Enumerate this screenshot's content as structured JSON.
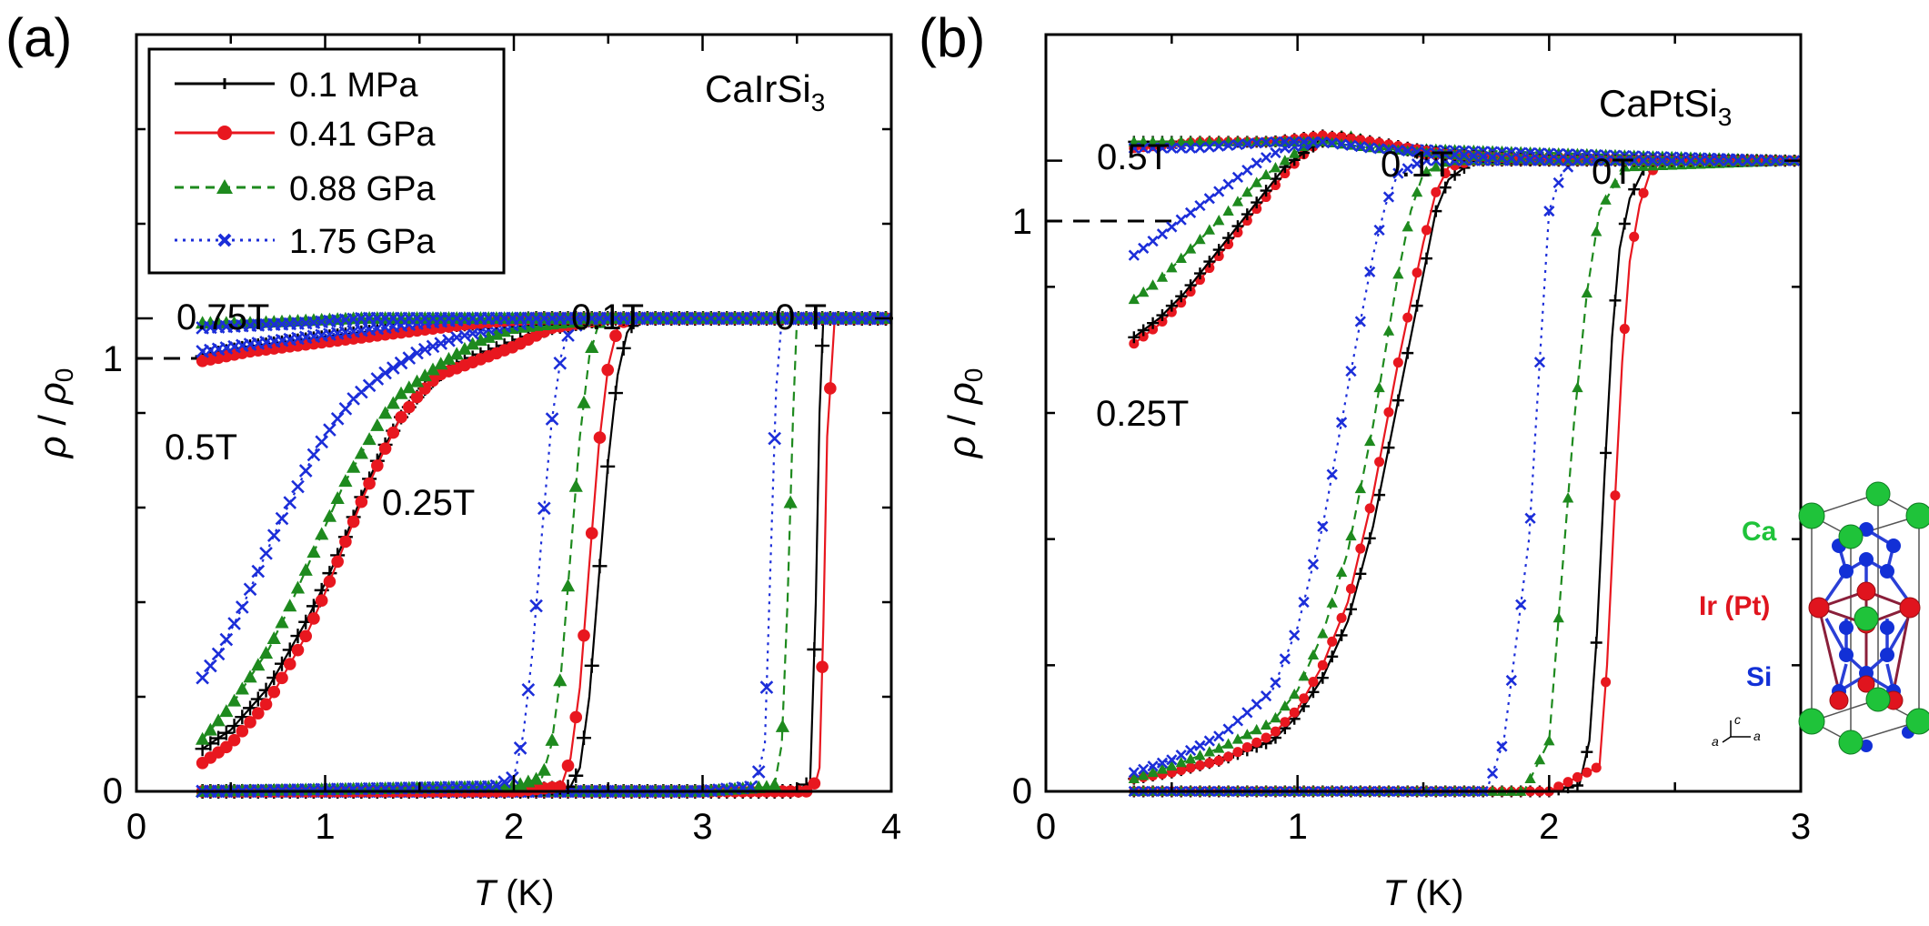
{
  "colors": {
    "black": "#000000",
    "red": "#e8171f",
    "green": "#1e8a1e",
    "blue": "#1c2ed9",
    "ca_atom": "#1fc33a",
    "ir_atom": "#e0141e",
    "si_atom": "#1230d6"
  },
  "panel_a": {
    "label": "(a)",
    "compound_prefix": "CaIrSi",
    "compound_sub": "3",
    "ylabel_rho": "ρ",
    "ylabel_slash": " / ",
    "ylabel_rho0": "ρ",
    "ylabel_sub": "0",
    "xlabel_var": "T",
    "xlabel_unit": " (K)",
    "x_ticks": [
      "0",
      "1",
      "2",
      "3",
      "4"
    ],
    "y_ticks": [
      "0",
      "1"
    ],
    "field_labels": [
      "0.75T",
      "0.1T",
      "0 T",
      "0.5T",
      "0.25T"
    ],
    "legend": [
      {
        "name": "0.1 MPa",
        "marker": "plus",
        "color": "#000000",
        "dash": "solid"
      },
      {
        "name": "0.41 GPa",
        "marker": "circle",
        "color": "#e8171f",
        "dash": "solid"
      },
      {
        "name": "0.88 GPa",
        "marker": "triangle",
        "color": "#1e8a1e",
        "dash": "dashed"
      },
      {
        "name": "1.75 GPa",
        "marker": "cross",
        "color": "#1c2ed9",
        "dash": "dotted"
      }
    ]
  },
  "panel_b": {
    "label": "(b)",
    "compound_prefix": "CaPtSi",
    "compound_sub": "3",
    "ylabel_rho": "ρ",
    "ylabel_slash": " / ",
    "ylabel_rho0": "ρ",
    "ylabel_sub": "0",
    "xlabel_var": "T",
    "xlabel_unit": " (K)",
    "x_ticks": [
      "0",
      "1",
      "2",
      "3"
    ],
    "y_ticks": [
      "0",
      "1"
    ],
    "field_labels": [
      "0.5T",
      "0.1T",
      "0T",
      "0.25T"
    ],
    "crystal_labels": [
      "Ca",
      "Ir (Pt)",
      "Si"
    ],
    "axes_glyphs": [
      "c",
      "a",
      "a"
    ]
  },
  "chart_data": [
    {
      "type": "line",
      "panel": "a",
      "xlabel": "T (K)",
      "ylabel": "ρ / ρ0",
      "xlim": [
        0,
        4
      ],
      "ylim": [
        0,
        1.6
      ],
      "series": [
        {
          "name": "0.1 MPa",
          "field": "0 T",
          "x": [
            0.35,
            3.0,
            3.5,
            3.57,
            3.6,
            3.62,
            3.64,
            3.7,
            3.9,
            4.0
          ],
          "y": [
            0.0,
            0.0,
            0.0,
            0.02,
            0.4,
            0.8,
            1.0,
            1.0,
            1.0,
            1.0
          ]
        },
        {
          "name": "0.41 GPa",
          "field": "0 T",
          "x": [
            0.35,
            3.0,
            3.55,
            3.6,
            3.62,
            3.64,
            3.66,
            3.7,
            3.9,
            4.0
          ],
          "y": [
            0.0,
            0.0,
            0.0,
            0.02,
            0.05,
            0.35,
            0.75,
            1.0,
            1.0,
            1.0
          ]
        },
        {
          "name": "0.88 GPa",
          "field": "0 T",
          "x": [
            0.35,
            3.0,
            3.38,
            3.42,
            3.45,
            3.48,
            3.5,
            3.55,
            3.9,
            4.0
          ],
          "y": [
            0.0,
            0.0,
            0.01,
            0.1,
            0.4,
            0.8,
            1.0,
            1.0,
            1.0,
            1.0
          ]
        },
        {
          "name": "1.75 GPa",
          "field": "0 T",
          "x": [
            0.35,
            3.0,
            3.28,
            3.33,
            3.36,
            3.39,
            3.42,
            3.5,
            3.9,
            4.0
          ],
          "y": [
            0.0,
            0.0,
            0.01,
            0.1,
            0.48,
            0.85,
            1.0,
            1.0,
            1.0,
            1.0
          ]
        },
        {
          "name": "0.1 MPa",
          "field": "0.1T",
          "x": [
            0.35,
            2.0,
            2.3,
            2.35,
            2.4,
            2.45,
            2.5,
            2.55,
            2.6,
            2.65,
            3.0
          ],
          "y": [
            0.0,
            0.0,
            0.01,
            0.05,
            0.2,
            0.45,
            0.7,
            0.88,
            0.97,
            1.0,
            1.0
          ]
        },
        {
          "name": "0.41 GPa",
          "field": "0.1T",
          "x": [
            0.35,
            2.0,
            2.25,
            2.3,
            2.35,
            2.4,
            2.45,
            2.5,
            2.55,
            2.6,
            3.0
          ],
          "y": [
            0.0,
            0.0,
            0.01,
            0.07,
            0.22,
            0.48,
            0.73,
            0.9,
            0.98,
            1.0,
            1.0
          ]
        },
        {
          "name": "0.88 GPa",
          "field": "0.1T",
          "x": [
            0.35,
            2.0,
            2.15,
            2.2,
            2.25,
            2.3,
            2.35,
            2.4,
            2.45,
            2.5,
            3.0
          ],
          "y": [
            0.0,
            0.01,
            0.03,
            0.1,
            0.25,
            0.5,
            0.75,
            0.92,
            0.99,
            1.0,
            1.0
          ]
        },
        {
          "name": "1.75 GPa",
          "field": "0.1T",
          "x": [
            0.35,
            1.9,
            2.0,
            2.05,
            2.1,
            2.15,
            2.2,
            2.25,
            2.3,
            2.4,
            3.0
          ],
          "y": [
            0.0,
            0.01,
            0.03,
            0.12,
            0.3,
            0.55,
            0.78,
            0.92,
            0.98,
            1.0,
            1.0
          ]
        },
        {
          "name": "0.1 MPa",
          "field": "0.25T",
          "x": [
            0.35,
            0.5,
            0.7,
            0.9,
            1.0,
            1.1,
            1.2,
            1.3,
            1.4,
            1.5,
            1.6,
            1.8,
            2.0,
            2.2,
            2.5
          ],
          "y": [
            0.09,
            0.13,
            0.22,
            0.36,
            0.44,
            0.53,
            0.63,
            0.72,
            0.79,
            0.84,
            0.88,
            0.92,
            0.95,
            0.98,
            1.0
          ]
        },
        {
          "name": "0.41 GPa",
          "field": "0.25T",
          "x": [
            0.35,
            0.5,
            0.7,
            0.9,
            1.0,
            1.1,
            1.2,
            1.3,
            1.4,
            1.5,
            1.6,
            1.8,
            2.0,
            2.2,
            2.5
          ],
          "y": [
            0.06,
            0.1,
            0.19,
            0.33,
            0.42,
            0.52,
            0.62,
            0.71,
            0.79,
            0.84,
            0.88,
            0.91,
            0.94,
            0.98,
            1.0
          ]
        },
        {
          "name": "0.88 GPa",
          "field": "0.25T",
          "x": [
            0.35,
            0.5,
            0.7,
            0.8,
            0.9,
            1.0,
            1.1,
            1.2,
            1.3,
            1.4,
            1.6,
            1.8,
            2.0,
            2.5
          ],
          "y": [
            0.11,
            0.18,
            0.3,
            0.38,
            0.47,
            0.56,
            0.65,
            0.72,
            0.79,
            0.84,
            0.9,
            0.95,
            0.98,
            1.0
          ]
        },
        {
          "name": "1.75 GPa",
          "field": "0.25T",
          "x": [
            0.35,
            0.45,
            0.55,
            0.65,
            0.75,
            0.85,
            0.95,
            1.05,
            1.15,
            1.3,
            1.5,
            1.7,
            1.9,
            2.2
          ],
          "y": [
            0.24,
            0.3,
            0.38,
            0.47,
            0.56,
            0.64,
            0.72,
            0.78,
            0.83,
            0.88,
            0.93,
            0.96,
            0.98,
            1.0
          ]
        },
        {
          "name": "0.1 MPa",
          "field": "0.5T",
          "x": [
            0.35,
            0.6,
            0.9,
            1.2,
            1.5,
            1.8,
            2.1,
            4.0
          ],
          "y": [
            0.92,
            0.94,
            0.955,
            0.97,
            0.98,
            0.99,
            1.0,
            1.0
          ]
        },
        {
          "name": "0.41 GPa",
          "field": "0.5T",
          "x": [
            0.35,
            0.6,
            0.9,
            1.2,
            1.5,
            1.8,
            2.1,
            4.0
          ],
          "y": [
            0.91,
            0.93,
            0.945,
            0.96,
            0.975,
            0.99,
            1.0,
            1.0
          ]
        },
        {
          "name": "1.75 GPa",
          "field": "0.5T",
          "x": [
            0.35,
            0.6,
            0.9,
            1.2,
            1.5,
            1.8,
            4.0
          ],
          "y": [
            0.93,
            0.945,
            0.96,
            0.975,
            0.99,
            1.0,
            1.0
          ]
        },
        {
          "name": "0.88 GPa",
          "field": "0.75T",
          "x": [
            0.35,
            0.6,
            0.9,
            1.2,
            1.5,
            2.0,
            4.0
          ],
          "y": [
            0.99,
            0.99,
            0.995,
            1.0,
            1.0,
            1.0,
            1.0
          ]
        },
        {
          "name": "1.75 GPa",
          "field": "0.75T",
          "x": [
            0.35,
            0.6,
            0.9,
            1.2,
            1.5,
            2.0,
            4.0
          ],
          "y": [
            0.98,
            0.985,
            0.99,
            1.0,
            1.0,
            1.0,
            1.0
          ]
        }
      ]
    },
    {
      "type": "line",
      "panel": "b",
      "xlabel": "T (K)",
      "ylabel": "ρ / ρ0",
      "xlim": [
        0,
        3
      ],
      "ylim": [
        0,
        1.2
      ],
      "series": [
        {
          "name": "0.1 MPa",
          "field": "0T",
          "x": [
            0.35,
            2.0,
            2.12,
            2.16,
            2.19,
            2.22,
            2.25,
            2.28,
            2.32,
            2.38,
            2.45,
            3.0
          ],
          "y": [
            0.0,
            0.0,
            0.01,
            0.08,
            0.25,
            0.5,
            0.72,
            0.86,
            0.94,
            0.99,
            1.0,
            1.0
          ]
        },
        {
          "name": "0.41 GPa",
          "field": "0T",
          "x": [
            0.35,
            2.0,
            2.2,
            2.23,
            2.26,
            2.29,
            2.32,
            2.36,
            2.4,
            2.45,
            3.0
          ],
          "y": [
            0.0,
            0.0,
            0.04,
            0.2,
            0.45,
            0.68,
            0.84,
            0.93,
            0.98,
            1.0,
            1.0
          ]
        },
        {
          "name": "0.88 GPa",
          "field": "0T",
          "x": [
            0.35,
            1.9,
            2.0,
            2.05,
            2.1,
            2.15,
            2.2,
            2.3,
            3.0
          ],
          "y": [
            0.0,
            0.0,
            0.08,
            0.34,
            0.59,
            0.79,
            0.92,
            0.99,
            1.0
          ]
        },
        {
          "name": "1.75 GPa",
          "field": "0T",
          "x": [
            0.35,
            1.75,
            1.82,
            1.87,
            1.92,
            1.97,
            2.0,
            2.05,
            2.1,
            3.0
          ],
          "y": [
            0.0,
            0.0,
            0.08,
            0.24,
            0.4,
            0.73,
            0.92,
            0.98,
            1.0,
            1.0
          ]
        },
        {
          "name": "0.1 MPa",
          "field": "0.1T",
          "x": [
            0.35,
            0.5,
            0.7,
            0.9,
            1.0,
            1.1,
            1.2,
            1.3,
            1.4,
            1.5,
            1.55,
            1.6,
            1.7,
            3.0
          ],
          "y": [
            0.02,
            0.03,
            0.05,
            0.08,
            0.12,
            0.18,
            0.27,
            0.42,
            0.62,
            0.82,
            0.92,
            0.97,
            1.0,
            1.0
          ]
        },
        {
          "name": "0.41 GPa",
          "field": "0.1T",
          "x": [
            0.35,
            0.5,
            0.7,
            0.9,
            1.0,
            1.1,
            1.2,
            1.3,
            1.4,
            1.5,
            1.55,
            1.6,
            1.7,
            3.0
          ],
          "y": [
            0.02,
            0.03,
            0.05,
            0.09,
            0.13,
            0.2,
            0.3,
            0.47,
            0.68,
            0.87,
            0.95,
            0.99,
            1.0,
            1.0
          ]
        },
        {
          "name": "0.88 GPa",
          "field": "0.1T",
          "x": [
            0.35,
            0.5,
            0.7,
            0.9,
            1.0,
            1.1,
            1.2,
            1.3,
            1.4,
            1.45,
            1.5,
            1.6,
            3.0
          ],
          "y": [
            0.02,
            0.04,
            0.07,
            0.11,
            0.16,
            0.25,
            0.38,
            0.58,
            0.82,
            0.92,
            0.98,
            1.0,
            1.0
          ]
        },
        {
          "name": "1.75 GPa",
          "field": "0.1T",
          "x": [
            0.35,
            0.5,
            0.7,
            0.9,
            1.0,
            1.1,
            1.2,
            1.3,
            1.35,
            1.4,
            1.5,
            3.0
          ],
          "y": [
            0.03,
            0.05,
            0.09,
            0.16,
            0.26,
            0.42,
            0.64,
            0.85,
            0.93,
            0.98,
            1.0,
            1.0
          ]
        },
        {
          "name": "0.41 GPa",
          "field": "0.25T",
          "x": [
            0.35,
            0.45,
            0.55,
            0.65,
            0.75,
            0.85,
            0.95,
            1.05,
            1.15,
            1.3,
            1.5,
            3.0
          ],
          "y": [
            0.71,
            0.74,
            0.78,
            0.83,
            0.88,
            0.93,
            0.98,
            1.02,
            1.04,
            1.03,
            1.01,
            1.0
          ]
        },
        {
          "name": "0.1 MPa",
          "field": "0.25T",
          "x": [
            0.35,
            0.45,
            0.55,
            0.65,
            0.75,
            0.85,
            0.95,
            1.05,
            1.15,
            1.3,
            1.5,
            3.0
          ],
          "y": [
            0.72,
            0.75,
            0.79,
            0.84,
            0.89,
            0.94,
            0.99,
            1.02,
            1.04,
            1.03,
            1.01,
            1.0
          ]
        },
        {
          "name": "0.88 GPa",
          "field": "0.25T",
          "x": [
            0.35,
            0.45,
            0.55,
            0.65,
            0.75,
            0.85,
            0.95,
            1.05,
            1.2,
            1.4,
            3.0
          ],
          "y": [
            0.78,
            0.81,
            0.85,
            0.89,
            0.93,
            0.97,
            1.0,
            1.03,
            1.04,
            1.02,
            1.0
          ]
        },
        {
          "name": "1.75 GPa",
          "field": "0.25T",
          "x": [
            0.35,
            0.45,
            0.55,
            0.65,
            0.75,
            0.85,
            0.95,
            1.1,
            1.3,
            3.0
          ],
          "y": [
            0.85,
            0.88,
            0.91,
            0.94,
            0.97,
            1.0,
            1.02,
            1.03,
            1.02,
            1.0
          ]
        },
        {
          "name": "0.1 MPa",
          "field": "0.5T",
          "x": [
            0.35,
            0.6,
            0.9,
            1.1,
            1.3,
            1.6,
            2.0,
            3.0
          ],
          "y": [
            1.03,
            1.03,
            1.03,
            1.04,
            1.03,
            1.01,
            1.0,
            1.0
          ]
        },
        {
          "name": "0.41 GPa",
          "field": "0.5T",
          "x": [
            0.35,
            0.6,
            0.9,
            1.1,
            1.3,
            1.6,
            2.0,
            3.0
          ],
          "y": [
            1.02,
            1.03,
            1.03,
            1.04,
            1.03,
            1.01,
            1.0,
            1.0
          ]
        },
        {
          "name": "0.88 GPa",
          "field": "0.5T",
          "x": [
            0.35,
            0.6,
            0.9,
            1.1,
            1.3,
            1.6,
            2.0,
            3.0
          ],
          "y": [
            1.03,
            1.03,
            1.03,
            1.03,
            1.02,
            1.01,
            1.0,
            1.0
          ]
        },
        {
          "name": "1.75 GPa",
          "field": "0.5T",
          "x": [
            0.35,
            0.6,
            0.9,
            1.1,
            1.3,
            1.6,
            2.0,
            3.0
          ],
          "y": [
            1.02,
            1.02,
            1.03,
            1.03,
            1.02,
            1.01,
            1.0,
            1.0
          ]
        }
      ]
    }
  ]
}
